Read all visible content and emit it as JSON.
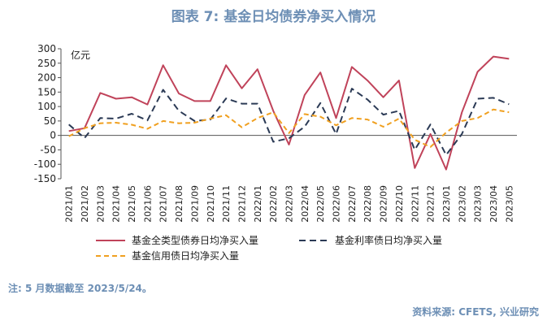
{
  "title": "图表 7:  基金日均债券净买入情况",
  "note": "注: 5 月数据截至 2023/5/24。",
  "source": "资料来源: CFETS, 兴业研究",
  "chart_data": {
    "type": "line",
    "unit_label": "亿元",
    "ylim": [
      -150,
      300
    ],
    "yticks": [
      -150,
      -100,
      -50,
      0,
      50,
      100,
      150,
      200,
      250,
      300
    ],
    "grid": false,
    "legend_position": "bottom",
    "categories": [
      "2021/01",
      "2021/02",
      "2021/03",
      "2021/04",
      "2021/05",
      "2021/06",
      "2021/07",
      "2021/08",
      "2021/09",
      "2021/10",
      "2021/11",
      "2021/12",
      "2022/01",
      "2022/02",
      "2022/03",
      "2022/04",
      "2022/05",
      "2022/06",
      "2022/07",
      "2022/08",
      "2022/09",
      "2022/10",
      "2022/11",
      "2022/12",
      "2023/01",
      "2023/02",
      "2023/03",
      "2023/04",
      "2023/05"
    ],
    "series": [
      {
        "name": "基金全类型债券日均净买入量",
        "color": "#c0435a",
        "style": "solid",
        "values": [
          15,
          25,
          147,
          127,
          132,
          107,
          243,
          145,
          119,
          119,
          243,
          163,
          229,
          85,
          -32,
          140,
          218,
          60,
          237,
          190,
          132,
          190,
          -113,
          5,
          -118,
          80,
          220,
          273,
          265
        ]
      },
      {
        "name": "基金利率债日均净买入量",
        "color": "#2b3a55",
        "style": "dashed",
        "values": [
          38,
          -9,
          60,
          58,
          75,
          52,
          158,
          85,
          50,
          55,
          128,
          110,
          110,
          -22,
          -10,
          30,
          112,
          5,
          162,
          124,
          72,
          85,
          -50,
          38,
          -68,
          5,
          127,
          130,
          108
        ]
      },
      {
        "name": "基金信用债日均净买入量",
        "color": "#f0a020",
        "style": "dashed",
        "values": [
          -3,
          25,
          42,
          44,
          37,
          23,
          50,
          42,
          44,
          58,
          70,
          28,
          60,
          80,
          8,
          74,
          65,
          35,
          60,
          55,
          30,
          58,
          -15,
          -40,
          10,
          50,
          60,
          90,
          80
        ]
      }
    ]
  }
}
